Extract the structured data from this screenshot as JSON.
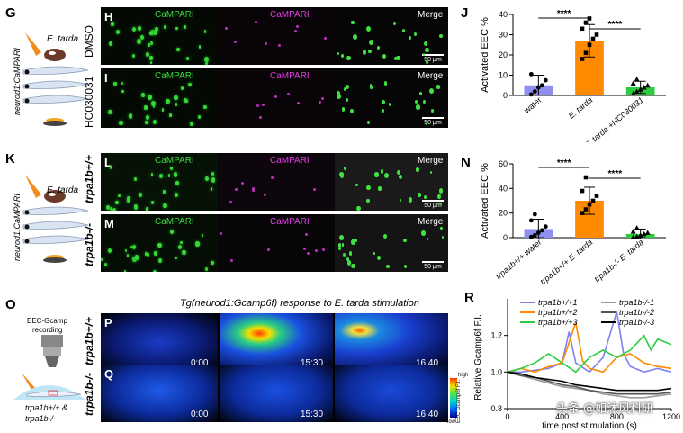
{
  "panels": {
    "G": "G",
    "H": "H",
    "I": "I",
    "J": "J",
    "K": "K",
    "L": "L",
    "M": "M",
    "N": "N",
    "O": "O",
    "P": "P",
    "Q": "Q",
    "R": "R"
  },
  "channels": {
    "camp_green": "CaMPARI",
    "camp_magenta": "CaMPARI",
    "merge": "Merge"
  },
  "conditions": {
    "dmso": "DMSO",
    "hc": "HC030031",
    "wt": "trpa1b+/+",
    "ko": "trpa1b-/-",
    "wt2": "trpa1b+/+",
    "ko2": "trpa1b-/-"
  },
  "scalebar": "50 μm",
  "schematic": {
    "pathogen": "E. tarda",
    "line": "neurod1:CaMPARI",
    "eec_gcamp": "EEC-Gcamp",
    "recording": "recording",
    "genotype_a": "trpa1b+/+ &",
    "genotype_b": "trpa1b-/-"
  },
  "gcamp_title": "Tg(neurod1:Gcamp6f) response to E. tarda stimulation",
  "timestamps": [
    "0:00",
    "15:30",
    "16:40"
  ],
  "colorbar": {
    "label": "EEC Gcamp6f F.I.",
    "low": "low",
    "high": "high"
  },
  "watermark": "头条 @如沐风科研",
  "chart_data": [
    {
      "id": "J",
      "type": "bar",
      "ylabel": "Activated EEC %",
      "ylim": [
        0,
        40
      ],
      "yticks": [
        0,
        10,
        20,
        30,
        40
      ],
      "categories": [
        "water",
        "E. tarda",
        "E. tarda +HC030031"
      ],
      "values": [
        5,
        27,
        4
      ],
      "errors": [
        5,
        8,
        3
      ],
      "colors": [
        "#8f8ff0",
        "#ff8a00",
        "#2ecc40"
      ],
      "markers": [
        "circle",
        "square",
        "triangle"
      ],
      "points": [
        [
          0.5,
          2,
          4,
          5,
          7.5,
          10.5
        ],
        [
          18,
          21,
          25,
          28,
          30,
          33,
          36,
          38
        ],
        [
          1,
          2,
          3,
          4,
          5,
          6,
          8
        ]
      ],
      "significance": [
        {
          "from": 0,
          "to": 1,
          "label": "****"
        },
        {
          "from": 1,
          "to": 2,
          "label": "****"
        }
      ]
    },
    {
      "id": "N",
      "type": "bar",
      "ylabel": "Activated EEC %",
      "ylim": [
        0,
        60
      ],
      "yticks": [
        0,
        20,
        40,
        60
      ],
      "categories": [
        "trpa1b+/+ water",
        "trpa1b+/+ E. tarda",
        "trpa1b-/- E. tarda"
      ],
      "values": [
        7,
        30,
        3
      ],
      "errors": [
        8,
        11,
        4
      ],
      "colors": [
        "#8f8ff0",
        "#ff8a00",
        "#2ecc40"
      ],
      "markers": [
        "circle",
        "square",
        "triangle"
      ],
      "points": [
        [
          0.5,
          2,
          4,
          6,
          9,
          14,
          19
        ],
        [
          20,
          23,
          27,
          30,
          34,
          38,
          49
        ],
        [
          0.5,
          1,
          2,
          3,
          4,
          5,
          8
        ]
      ],
      "significance": [
        {
          "from": 0,
          "to": 1,
          "label": "****"
        },
        {
          "from": 1,
          "to": 2,
          "label": "****"
        }
      ]
    },
    {
      "id": "R",
      "type": "line",
      "ylabel": "Relative Gcamp6f F.I.",
      "xlabel": "time post stimulation (s)",
      "xlim": [
        0,
        1200
      ],
      "ylim": [
        0.8,
        1.4
      ],
      "yticks": [
        0.8,
        1.0,
        1.2
      ],
      "xticks": [
        0,
        400,
        800,
        1200
      ],
      "series": [
        {
          "name": "trpa1b+/+1",
          "color": "#8080f0",
          "x": [
            0,
            100,
            200,
            300,
            400,
            450,
            500,
            600,
            700,
            800,
            850,
            900,
            1000,
            1100,
            1200
          ],
          "y": [
            1.0,
            1.0,
            1.01,
            1.02,
            1.05,
            1.22,
            1.05,
            1.0,
            1.08,
            1.33,
            1.1,
            1.03,
            1.0,
            1.02,
            1.0
          ]
        },
        {
          "name": "trpa1b+/+2",
          "color": "#ff8a00",
          "x": [
            0,
            100,
            200,
            300,
            400,
            500,
            550,
            600,
            700,
            800,
            900,
            1000,
            1100,
            1200
          ],
          "y": [
            1.0,
            1.02,
            1.0,
            1.03,
            1.05,
            1.27,
            1.06,
            1.02,
            1.0,
            1.08,
            1.1,
            1.05,
            1.03,
            1.02
          ]
        },
        {
          "name": "trpa1b+/+3",
          "color": "#2ecc40",
          "x": [
            0,
            100,
            200,
            300,
            400,
            500,
            600,
            700,
            800,
            900,
            1000,
            1050,
            1100,
            1200
          ],
          "y": [
            1.0,
            1.02,
            1.05,
            1.1,
            1.05,
            1.0,
            1.08,
            1.12,
            1.08,
            1.12,
            1.2,
            1.12,
            1.18,
            1.15
          ]
        },
        {
          "name": "trpa1b-/-1",
          "color": "#999999",
          "x": [
            0,
            100,
            200,
            300,
            400,
            500,
            600,
            700,
            800,
            900,
            1000,
            1100,
            1200
          ],
          "y": [
            1.0,
            0.98,
            0.96,
            0.94,
            0.92,
            0.91,
            0.9,
            0.88,
            0.87,
            0.86,
            0.86,
            0.87,
            0.88
          ]
        },
        {
          "name": "trpa1b-/-2",
          "color": "#555555",
          "x": [
            0,
            100,
            200,
            300,
            400,
            500,
            600,
            700,
            800,
            900,
            1000,
            1100,
            1200
          ],
          "y": [
            1.0,
            0.98,
            0.97,
            0.95,
            0.93,
            0.92,
            0.9,
            0.89,
            0.88,
            0.88,
            0.88,
            0.88,
            0.89
          ]
        },
        {
          "name": "trpa1b-/-3",
          "color": "#000000",
          "x": [
            0,
            100,
            200,
            300,
            400,
            500,
            600,
            700,
            800,
            900,
            1000,
            1100,
            1200
          ],
          "y": [
            1.0,
            0.99,
            0.97,
            0.96,
            0.95,
            0.93,
            0.92,
            0.91,
            0.9,
            0.9,
            0.9,
            0.9,
            0.91
          ]
        }
      ]
    }
  ]
}
